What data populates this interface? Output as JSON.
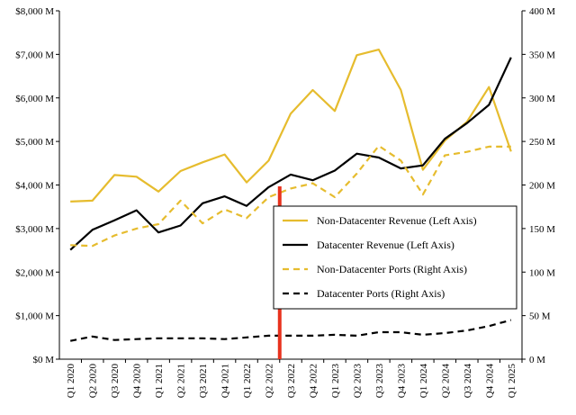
{
  "chart_data": {
    "type": "line",
    "categories": [
      "Q1 2020",
      "Q2 2020",
      "Q3 2020",
      "Q4 2020",
      "Q1 2021",
      "Q2 2021",
      "Q3 2021",
      "Q4 2021",
      "Q1 2022",
      "Q2 2022",
      "Q3 2022",
      "Q4 2022",
      "Q1 2023",
      "Q2 2023",
      "Q3 2023",
      "Q4 2023",
      "Q1 2024",
      "Q2 2024",
      "Q3 2024",
      "Q4 2024",
      "Q1 2025"
    ],
    "left_axis": {
      "ylim": [
        0,
        8000
      ],
      "ticks": [
        0,
        1000,
        2000,
        3000,
        4000,
        5000,
        6000,
        7000,
        8000
      ],
      "tick_labels": [
        "$0 M",
        "$1,000 M",
        "$2,000 M",
        "$3,000 M",
        "$4,000 M",
        "$5,000 M",
        "$6,000 M",
        "$7,000 M",
        "$8,000 M"
      ]
    },
    "right_axis": {
      "ylim": [
        0,
        400
      ],
      "ticks": [
        0,
        50,
        100,
        150,
        200,
        250,
        300,
        350,
        400
      ],
      "tick_labels": [
        "0 M",
        "50 M",
        "100 M",
        "150 M",
        "200 M",
        "250 M",
        "300 M",
        "350 M",
        "400 M"
      ]
    },
    "series": [
      {
        "name": "Non-Datacenter Revenue (Left Axis)",
        "axis": "left",
        "color": "#E6BC2E",
        "style": "solid",
        "values": [
          3620,
          3640,
          4230,
          4190,
          3850,
          4320,
          4520,
          4700,
          4060,
          4560,
          5640,
          6180,
          5700,
          6980,
          7110,
          6180,
          4350,
          5020,
          5450,
          6250,
          4770
        ]
      },
      {
        "name": "Datacenter Revenue (Left Axis)",
        "axis": "left",
        "color": "#000000",
        "style": "solid",
        "values": [
          2510,
          2970,
          3190,
          3420,
          2910,
          3070,
          3580,
          3740,
          3520,
          3950,
          4240,
          4110,
          4330,
          4720,
          4630,
          4380,
          4450,
          5060,
          5420,
          5840,
          6930
        ]
      },
      {
        "name": "Non-Datacenter Ports (Right Axis)",
        "axis": "right",
        "color": "#E6BC2E",
        "style": "dashed",
        "values": [
          131,
          130,
          142,
          150,
          155,
          182,
          156,
          172,
          162,
          186,
          196,
          202,
          186,
          213,
          245,
          228,
          189,
          234,
          238,
          244,
          244
        ]
      },
      {
        "name": "Datacenter Ports (Right Axis)",
        "axis": "right",
        "color": "#000000",
        "style": "dashed",
        "values": [
          21,
          26,
          22,
          23,
          24,
          24,
          24,
          23,
          25,
          27,
          27,
          27,
          28,
          27,
          31,
          31,
          28,
          30,
          33,
          38,
          45
        ]
      }
    ],
    "marker_line": {
      "color": "#E8321E",
      "between": [
        "Q2 2022",
        "Q3 2022"
      ]
    },
    "legend_position": "center-right",
    "grid": false
  }
}
